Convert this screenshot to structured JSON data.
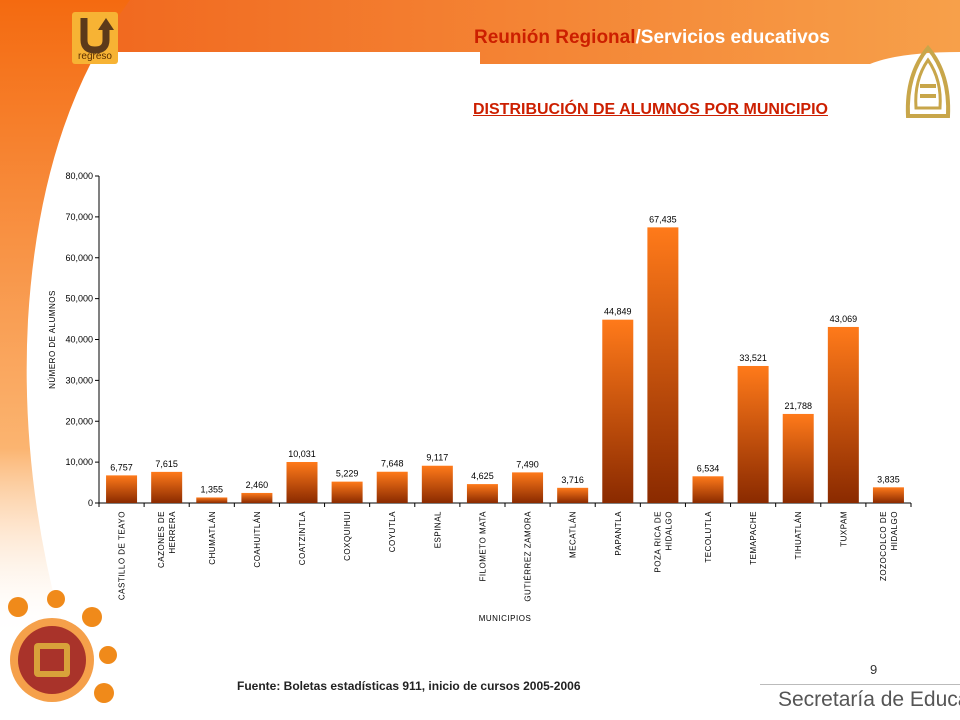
{
  "header": {
    "back_label": "regreso",
    "title_part1": "Reunión Regional",
    "title_part2": "/Servicios educativos",
    "subtitle": "DISTRIBUCIÓN DE ALUMNOS POR MUNICIPIO"
  },
  "footer": {
    "page_number": "9",
    "source": "Fuente: Boletas estadísticas 911, inicio de cursos 2005-2006",
    "organization": "Secretaría de Educación"
  },
  "colors": {
    "accent": "#f26b10",
    "title_red": "#cc1f00",
    "bar_top": "#ff7a1a",
    "bar_bottom": "#8a2a00"
  },
  "icons": [
    "u-turn-back-icon",
    "veracruz-emblem-icon",
    "coat-of-arms-icon"
  ],
  "chart_data": {
    "type": "bar",
    "categories": [
      [
        "CASTILLO DE TEAYO"
      ],
      [
        "CAZONES DE",
        "HERRERA"
      ],
      [
        "CHUMATLÁN"
      ],
      [
        "COAHUITLÁN"
      ],
      [
        "COATZINTLA"
      ],
      [
        "COXQUIHUI"
      ],
      [
        "COYUTLA"
      ],
      [
        "ESPINAL"
      ],
      [
        "FILOMETO MATA"
      ],
      [
        "GUTIÉRREZ ZAMORA"
      ],
      [
        "MECATLÁN"
      ],
      [
        "PAPANTLA"
      ],
      [
        "POZA RICA DE",
        "HIDALGO"
      ],
      [
        "TECOLUTLA"
      ],
      [
        "TEMAPACHE"
      ],
      [
        "TIHUATLÁN"
      ],
      [
        "TUXPAM"
      ],
      [
        "ZOZOCOLCO DE",
        "HIDALGO"
      ]
    ],
    "values": [
      6757,
      7615,
      1355,
      2460,
      10031,
      5229,
      7648,
      9117,
      4625,
      7490,
      3716,
      44849,
      67435,
      6534,
      33521,
      21788,
      43069,
      3835
    ],
    "value_labels": [
      "6,757",
      "7,615",
      "1,355",
      "2,460",
      "10,031",
      "5,229",
      "7,648",
      "9,117",
      "4,625",
      "7,490",
      "3,716",
      "44,849",
      "67,435",
      "6,534",
      "33,521",
      "21,788",
      "43,069",
      "3,835"
    ],
    "xlabel": "MUNICIPIOS",
    "ylabel": "NÚMERO DE ALUMNOS",
    "ylim": [
      0,
      80000
    ],
    "yticks": [
      "0",
      "10,000",
      "20,000",
      "30,000",
      "40,000",
      "50,000",
      "60,000",
      "70,000",
      "80,000"
    ],
    "grid": false,
    "legend": "none"
  }
}
